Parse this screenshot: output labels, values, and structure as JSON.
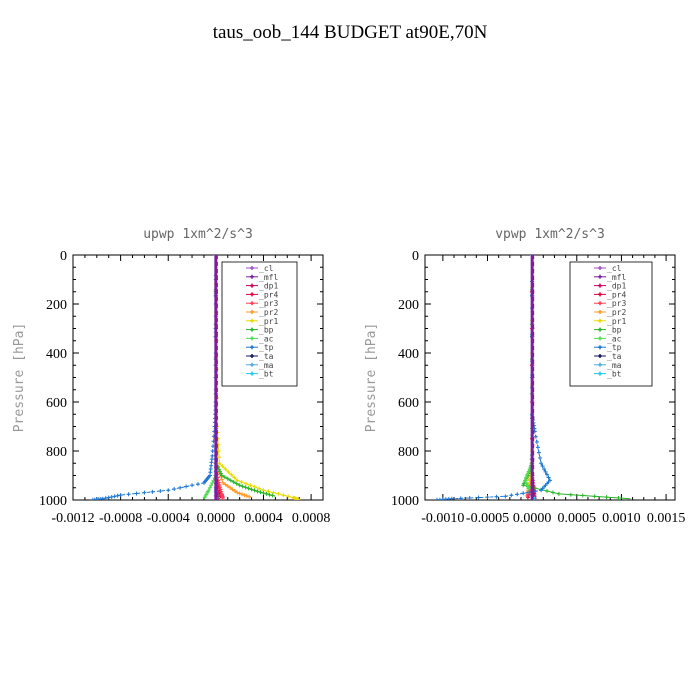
{
  "page_title": "taus_oob_144  BUDGET at90E,70N",
  "chart_data": [
    {
      "type": "line",
      "title": "upwp  1xm^2/s^3",
      "ylabel": "Pressure [hPa]",
      "xlabel": "",
      "y_inverted": true,
      "ylim": [
        0,
        1000
      ],
      "xlim": [
        -0.0012,
        0.0009
      ],
      "x_ticks": [
        -0.0012,
        -0.0008,
        -0.0004,
        0,
        0.0004,
        0.0008
      ],
      "x_tick_labels": [
        "-0.0012",
        "-0.0008",
        "-0.0004",
        "0.0000",
        "0.0004",
        "0.0008"
      ],
      "y_ticks": [
        0,
        200,
        400,
        600,
        800,
        1000
      ],
      "y_tick_labels": [
        "0",
        "200",
        "400",
        "600",
        "800",
        "1000"
      ],
      "legend_position": "top-right",
      "series": [
        {
          "name": "_cl",
          "color": "#a050c8",
          "points": [
            [
              0,
              0
            ],
            [
              0,
              500
            ],
            [
              0,
              800
            ],
            [
              0,
              900
            ],
            [
              0,
              1000
            ]
          ]
        },
        {
          "name": "_mfl",
          "color": "#7a1fa0",
          "points": [
            [
              0,
              0
            ],
            [
              0,
              1000
            ]
          ]
        },
        {
          "name": "_dp1",
          "color": "#c8005a",
          "points": [
            [
              0,
              0
            ],
            [
              0,
              900
            ],
            [
              1e-05,
              960
            ],
            [
              2e-05,
              1000
            ]
          ]
        },
        {
          "name": "_pr4",
          "color": "#e0003c",
          "points": [
            [
              0,
              0
            ],
            [
              0,
              900
            ],
            [
              3e-05,
              960
            ],
            [
              4e-05,
              990
            ]
          ]
        },
        {
          "name": "_pr3",
          "color": "#ff3c50",
          "points": [
            [
              0,
              0
            ],
            [
              0,
              850
            ],
            [
              2e-05,
              920
            ],
            [
              5e-05,
              975
            ],
            [
              6e-05,
              995
            ]
          ]
        },
        {
          "name": "_pr2",
          "color": "#ff9a28",
          "points": [
            [
              0,
              0
            ],
            [
              5e-06,
              700
            ],
            [
              1e-05,
              850
            ],
            [
              6e-05,
              930
            ],
            [
              0.00018,
              970
            ],
            [
              0.0003,
              990
            ]
          ]
        },
        {
          "name": "_pr1",
          "color": "#e8d800",
          "points": [
            [
              0,
              0
            ],
            [
              1e-05,
              700
            ],
            [
              3e-05,
              850
            ],
            [
              0.00018,
              920
            ],
            [
              0.0004,
              960
            ],
            [
              0.00065,
              990
            ],
            [
              0.0007,
              1000
            ]
          ]
        },
        {
          "name": "_bp",
          "color": "#28b428",
          "points": [
            [
              0,
              0
            ],
            [
              0,
              850
            ],
            [
              5e-05,
              900
            ],
            [
              0.0002,
              940
            ],
            [
              0.00035,
              965
            ],
            [
              0.0005,
              985
            ]
          ]
        },
        {
          "name": "_ac",
          "color": "#50dc50",
          "points": [
            [
              0,
              0
            ],
            [
              0,
              900
            ],
            [
              -6e-05,
              960
            ],
            [
              -0.0001,
              995
            ]
          ]
        },
        {
          "name": "_tp",
          "color": "#1e78d2",
          "points": [
            [
              0,
              0
            ],
            [
              0,
              600
            ],
            [
              -1e-05,
              700
            ],
            [
              -3e-05,
              820
            ],
            [
              -5e-05,
              900
            ],
            [
              -0.0001,
              930
            ],
            [
              -0.0004,
              960
            ],
            [
              -0.0008,
              980
            ],
            [
              -0.00095,
              995
            ],
            [
              -0.00105,
              1000
            ]
          ]
        },
        {
          "name": "_ta",
          "color": "#14145a",
          "points": [
            [
              0,
              0
            ],
            [
              0,
              1000
            ]
          ]
        },
        {
          "name": "_ma",
          "color": "#50aadc",
          "points": [
            [
              0,
              0
            ],
            [
              0,
              1000
            ]
          ]
        },
        {
          "name": "_bt",
          "color": "#1ec8f0",
          "points": [
            [
              0,
              0
            ],
            [
              0,
              950
            ],
            [
              1e-05,
              1000
            ]
          ]
        }
      ]
    },
    {
      "type": "line",
      "title": "vpwp  1xm^2/s^3",
      "ylabel": "Pressure [hPa]",
      "xlabel": "",
      "y_inverted": true,
      "ylim": [
        0,
        1000
      ],
      "xlim": [
        -0.0012,
        0.0016
      ],
      "x_ticks": [
        -0.001,
        -0.0005,
        0,
        0.0005,
        0.001,
        0.0015
      ],
      "x_tick_labels": [
        "-0.0010",
        "-0.0005",
        "0.0000",
        "0.0005",
        "0.0010",
        "0.0015"
      ],
      "y_ticks": [
        0,
        200,
        400,
        600,
        800,
        1000
      ],
      "y_tick_labels": [
        "0",
        "200",
        "400",
        "600",
        "800",
        "1000"
      ],
      "legend_position": "top-right",
      "series": [
        {
          "name": "_cl",
          "color": "#a050c8",
          "points": [
            [
              0,
              0
            ],
            [
              0,
              1000
            ]
          ]
        },
        {
          "name": "_mfl",
          "color": "#7a1fa0",
          "points": [
            [
              0,
              0
            ],
            [
              0,
              1000
            ]
          ]
        },
        {
          "name": "_dp1",
          "color": "#c8005a",
          "points": [
            [
              0,
              0
            ],
            [
              0,
              900
            ],
            [
              2e-05,
              960
            ],
            [
              3e-05,
              1000
            ]
          ]
        },
        {
          "name": "_pr4",
          "color": "#e0003c",
          "points": [
            [
              0,
              0
            ],
            [
              0,
              900
            ],
            [
              -3e-05,
              960
            ],
            [
              -5e-05,
              995
            ]
          ]
        },
        {
          "name": "_pr3",
          "color": "#ff3c50",
          "points": [
            [
              0,
              0
            ],
            [
              0,
              900
            ],
            [
              -2e-05,
              950
            ],
            [
              -6e-05,
              990
            ]
          ]
        },
        {
          "name": "_pr2",
          "color": "#ff9a28",
          "points": [
            [
              0,
              0
            ],
            [
              0,
              850
            ],
            [
              -3e-05,
              930
            ],
            [
              -5e-05,
              975
            ]
          ]
        },
        {
          "name": "_pr1",
          "color": "#e8d800",
          "points": [
            [
              0,
              0
            ],
            [
              0,
              800
            ],
            [
              -2e-05,
              900
            ],
            [
              -4e-05,
              960
            ]
          ]
        },
        {
          "name": "_bp",
          "color": "#28b428",
          "points": [
            [
              0,
              0
            ],
            [
              0,
              850
            ],
            [
              -5e-05,
              900
            ],
            [
              -0.0001,
              940
            ],
            [
              0.0003,
              975
            ],
            [
              0.0011,
              995
            ]
          ]
        },
        {
          "name": "_ac",
          "color": "#50dc50",
          "points": [
            [
              0,
              0
            ],
            [
              0,
              850
            ],
            [
              -8e-05,
              920
            ],
            [
              -3e-05,
              960
            ]
          ]
        },
        {
          "name": "_tp",
          "color": "#1e78d2",
          "points": [
            [
              0,
              0
            ],
            [
              0,
              650
            ],
            [
              3e-05,
              720
            ],
            [
              0.0001,
              850
            ],
            [
              0.0002,
              920
            ],
            [
              0.0001,
              960
            ],
            [
              -0.0003,
              985
            ],
            [
              -0.0009,
              995
            ],
            [
              -0.0011,
              1000
            ]
          ]
        },
        {
          "name": "_ta",
          "color": "#14145a",
          "points": [
            [
              0,
              0
            ],
            [
              0,
              1000
            ]
          ]
        },
        {
          "name": "_ma",
          "color": "#50aadc",
          "points": [
            [
              0,
              0
            ],
            [
              0,
              1000
            ]
          ]
        },
        {
          "name": "_bt",
          "color": "#1ec8f0",
          "points": [
            [
              0,
              0
            ],
            [
              0,
              980
            ],
            [
              2e-05,
              1000
            ]
          ]
        }
      ]
    }
  ]
}
